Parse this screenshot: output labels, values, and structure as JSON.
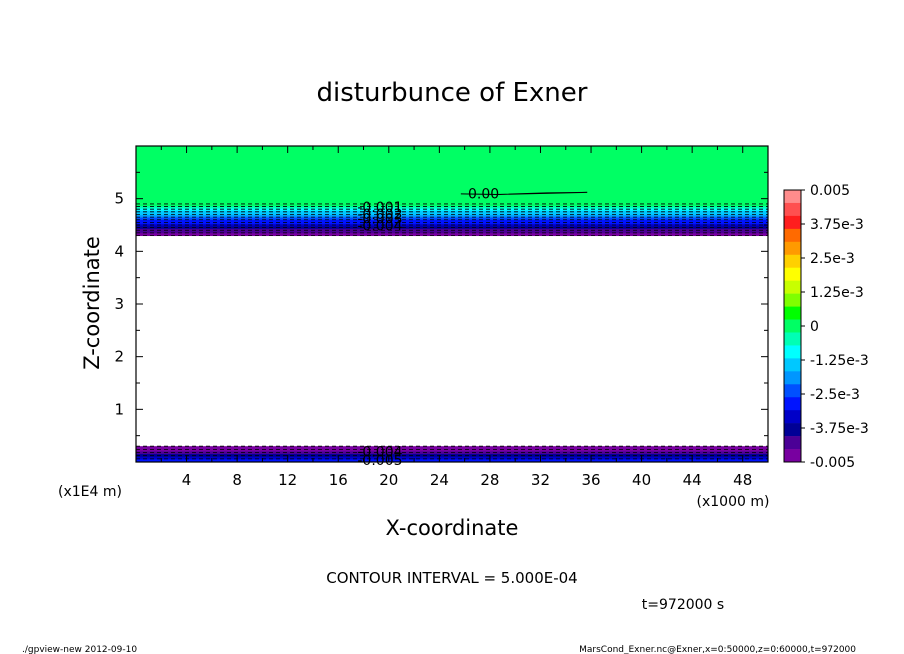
{
  "chart_data": {
    "type": "contour",
    "title": "disturbunce of Exner",
    "xlabel": "X-coordinate",
    "ylabel": "Z-coordinate",
    "x_unit": "(x1000 m)",
    "y_unit": "(x1E4 m)",
    "xlim": [
      0,
      50
    ],
    "ylim": [
      0,
      6
    ],
    "x_ticks": [
      "4",
      "8",
      "12",
      "16",
      "20",
      "24",
      "28",
      "32",
      "36",
      "40",
      "44",
      "48"
    ],
    "y_ticks": [
      "1",
      "2",
      "3",
      "4",
      "5"
    ],
    "grid": false,
    "contour_interval": "CONTOUR INTERVAL = 5.000E-04",
    "time_label": "t=972000 s",
    "colorbar": {
      "range": [
        -0.005,
        0.005
      ],
      "tick_labels": [
        "0.005",
        "3.75e-3",
        "2.5e-3",
        "1.25e-3",
        "0",
        "-1.25e-3",
        "-2.5e-3",
        "-3.75e-3",
        "-0.005"
      ],
      "colors": [
        "#ff8c8c",
        "#ff5050",
        "#ff1e1e",
        "#ff6a00",
        "#ff9a00",
        "#ffd000",
        "#ffff00",
        "#c8ff00",
        "#7fff00",
        "#00ff00",
        "#00ff64",
        "#00ffb4",
        "#00ffff",
        "#00c8ff",
        "#0096ff",
        "#0050ff",
        "#0014ff",
        "#0000c8",
        "#000096",
        "#4b0096",
        "#7800a0"
      ]
    },
    "regions": [
      {
        "z_from": 4.3,
        "z_to": 6.0,
        "value_range": [
          -0.005,
          0.0
        ],
        "description_level": "upper layer: near 0 at top, decreasing to -0.005 at z≈4.3"
      },
      {
        "z_from": 0.0,
        "z_to": 0.3,
        "value_range": [
          -0.005,
          -0.0025
        ],
        "description_level": "bottom layer: negative values"
      }
    ],
    "contour_labels": [
      {
        "text": "0.00",
        "x": 27.5,
        "z": 5.08
      },
      {
        "text": "-0.001",
        "x": 19.3,
        "z": 4.82
      },
      {
        "text": "-0.002",
        "x": 19.3,
        "z": 4.69
      },
      {
        "text": "-0.003",
        "x": 19.3,
        "z": 4.6
      },
      {
        "text": "-0.004",
        "x": 19.3,
        "z": 4.47
      },
      {
        "text": "-0.004",
        "x": 19.3,
        "z": 0.18
      },
      {
        "text": "-0.005",
        "x": 19.3,
        "z": 0.02
      }
    ]
  },
  "footer": {
    "left": "./gpview-new   2012-09-10",
    "right": "MarsCond_Exner.nc@Exner,x=0:50000,z=0:60000,t=972000"
  }
}
